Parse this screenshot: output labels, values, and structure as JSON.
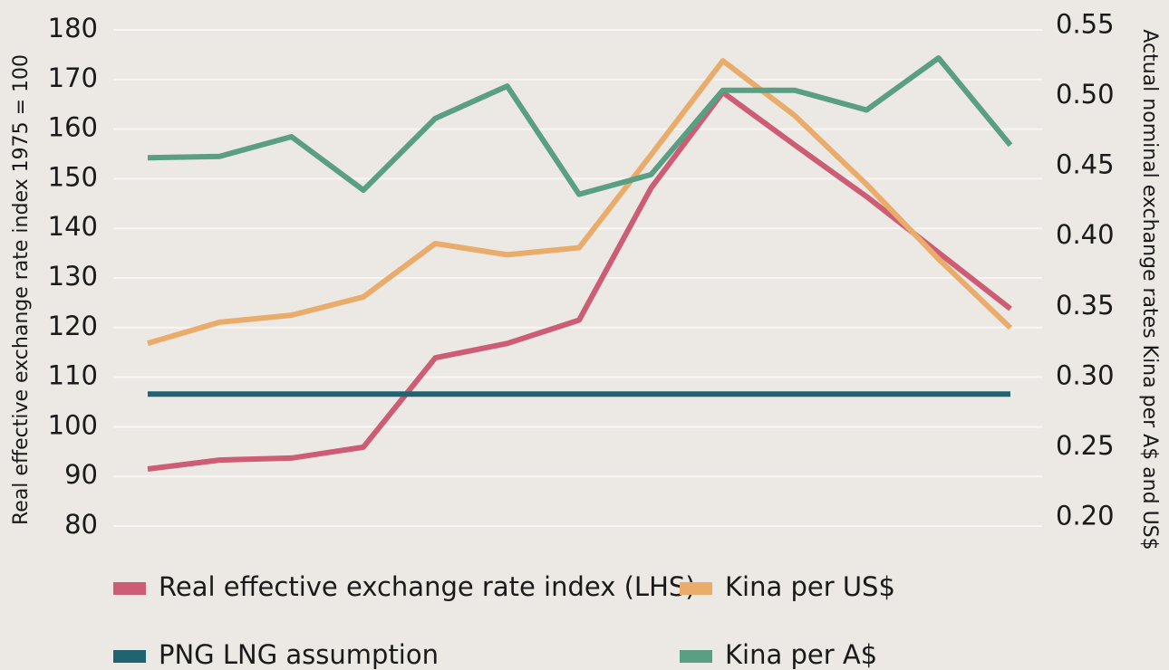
{
  "chart_data": {
    "type": "line",
    "y_label": "Real effective exchange rate index 1975 = 100",
    "y2_label": "Actual nominal  exchange rates Kina per A$ and US$",
    "categories": [
      null,
      null,
      null,
      null,
      null,
      null,
      null,
      null,
      null,
      null,
      null,
      null,
      null
    ],
    "ylim": [
      80,
      180
    ],
    "yticks": [
      80,
      90,
      100,
      110,
      120,
      130,
      140,
      150,
      160,
      170,
      180
    ],
    "y2lim": [
      0.194,
      0.547
    ],
    "y2ticks": [
      {
        "value": 0.2,
        "label": "0.20"
      },
      {
        "value": 0.25,
        "label": "0.25"
      },
      {
        "value": 0.3,
        "label": "0.30"
      },
      {
        "value": 0.35,
        "label": "0.35"
      },
      {
        "value": 0.4,
        "label": "0.40"
      },
      {
        "value": 0.45,
        "label": "0.45"
      },
      {
        "value": 0.5,
        "label": "0.50"
      },
      {
        "value": 0.55,
        "label": "0.55"
      }
    ],
    "grid": true,
    "legend": "bottom",
    "series": [
      {
        "name": "Real effective exchange rate index (LHS)",
        "color": "#cd5c75",
        "values": [
          91.5,
          93.3,
          93.7,
          95.9,
          113.9,
          116.8,
          121.5,
          148.1,
          167.4,
          156.8,
          146.4,
          135.1,
          123.8
        ]
      },
      {
        "name": "Kina per US$",
        "color": "#e9ac6b",
        "axis": "y2",
        "values": [
          0.324,
          0.339,
          0.344,
          0.357,
          0.395,
          0.387,
          0.392,
          0.458,
          0.525,
          0.486,
          0.437,
          0.384,
          0.335
        ]
      },
      {
        "name": "PNG LNG assumption",
        "color": "#1f6470",
        "values": [
          106.6,
          106.6,
          106.6,
          106.6,
          106.6,
          106.6,
          106.6,
          106.6,
          106.6,
          106.6,
          106.6,
          106.6,
          106.6
        ]
      },
      {
        "name": "Kina per A$",
        "color": "#5a9e84",
        "axis": "y2",
        "values": [
          0.456,
          0.457,
          0.471,
          0.433,
          0.484,
          0.507,
          0.43,
          0.444,
          0.504,
          0.504,
          0.49,
          0.527,
          0.465
        ]
      }
    ]
  }
}
